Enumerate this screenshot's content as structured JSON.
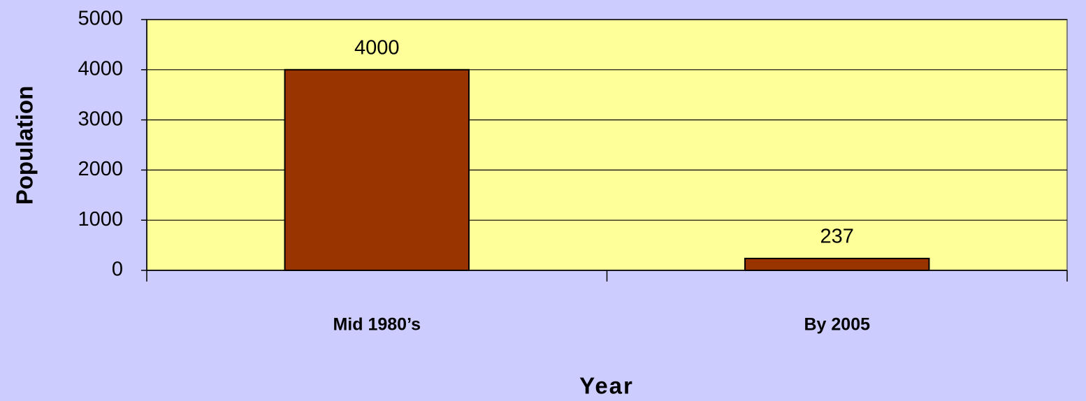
{
  "chart_data": {
    "type": "bar",
    "categories": [
      "Mid 1980’s",
      "By 2005"
    ],
    "values": [
      4000,
      237
    ],
    "color": "#993300",
    "ylim": [
      0,
      5000
    ],
    "yticks": [
      0,
      1000,
      2000,
      3000,
      4000,
      5000
    ],
    "grid": true,
    "x_label": "Year",
    "y_label": "Population",
    "data_labels": true,
    "background": "#ccccff",
    "plot_background": "#ffff99"
  }
}
